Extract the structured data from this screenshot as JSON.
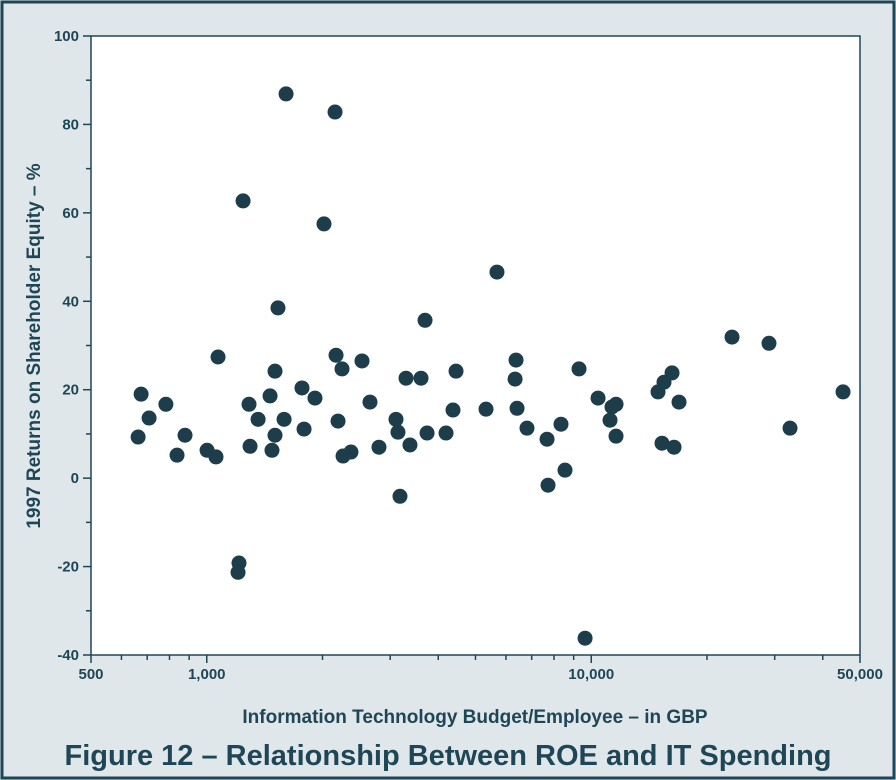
{
  "chart_data": {
    "type": "scatter",
    "title": "Figure 12 – Relationship Between ROE and IT Spending",
    "x_label": "Information Technology Budget/Employee – in GBP",
    "y_label": "1997 Returns on Shareholder Equity – %",
    "xscale": "log",
    "xlim": [
      500,
      50000
    ],
    "ylim": [
      -40,
      100
    ],
    "xticks": [
      500,
      {
        "value": 1000,
        "label": "1,000"
      },
      {
        "value": 10000,
        "label": "10,000"
      },
      {
        "value": 50000,
        "label": "50,000"
      }
    ],
    "xminorticks": [
      600,
      700,
      800,
      900,
      2000,
      3000,
      4000,
      5000,
      6000,
      7000,
      8000,
      9000,
      20000,
      30000,
      40000
    ],
    "yticks": [
      -40,
      -20,
      0,
      20,
      40,
      60,
      80,
      100
    ],
    "yminorticks": [
      -30,
      -10,
      10,
      30,
      50,
      70,
      90
    ],
    "color": "#1e3d4b",
    "x": [
      663,
      675,
      708,
      783,
      837,
      878,
      1002,
      1057,
      1070,
      1243,
      1213,
      1206,
      1288,
      1296,
      1360,
      1461,
      1478,
      1505,
      1505,
      1532,
      1589,
      1608,
      1769,
      1791,
      1912,
      2018,
      2156,
      2169,
      2195,
      2248,
      2262,
      2372,
      2534,
      2658,
      2805,
      3106,
      3143,
      3181,
      3298,
      3377,
      3608,
      3696,
      3741,
      4191,
      4370,
      4450,
      5325,
      5686,
      6337,
      6374,
      6413,
      6806,
      7674,
      7720,
      8343,
      8546,
      9294,
      9637,
      10416,
      11190,
      11324,
      11600,
      11600,
      14916,
      15277,
      15460,
      16222,
      16419,
      16916,
      23234,
      28989,
      32885,
      45170
    ],
    "values": [
      9.3,
      19.0,
      13.6,
      16.7,
      5.2,
      9.7,
      6.3,
      4.8,
      27.4,
      62.7,
      -19.2,
      -21.3,
      16.7,
      7.2,
      13.3,
      18.6,
      6.3,
      24.2,
      9.7,
      38.5,
      13.3,
      86.9,
      20.4,
      11.1,
      18.1,
      57.5,
      82.8,
      27.8,
      12.9,
      24.7,
      5.0,
      5.9,
      26.5,
      17.2,
      7.0,
      13.3,
      10.4,
      -4.1,
      22.6,
      7.5,
      22.6,
      35.7,
      10.2,
      10.2,
      15.4,
      24.2,
      15.6,
      46.6,
      22.4,
      26.7,
      15.8,
      11.3,
      8.8,
      -1.6,
      12.2,
      1.8,
      24.7,
      -36.2,
      18.1,
      13.1,
      16.1,
      16.7,
      9.5,
      19.5,
      7.9,
      21.7,
      23.8,
      7.0,
      17.2,
      31.9,
      30.5,
      11.3,
      19.5
    ]
  }
}
